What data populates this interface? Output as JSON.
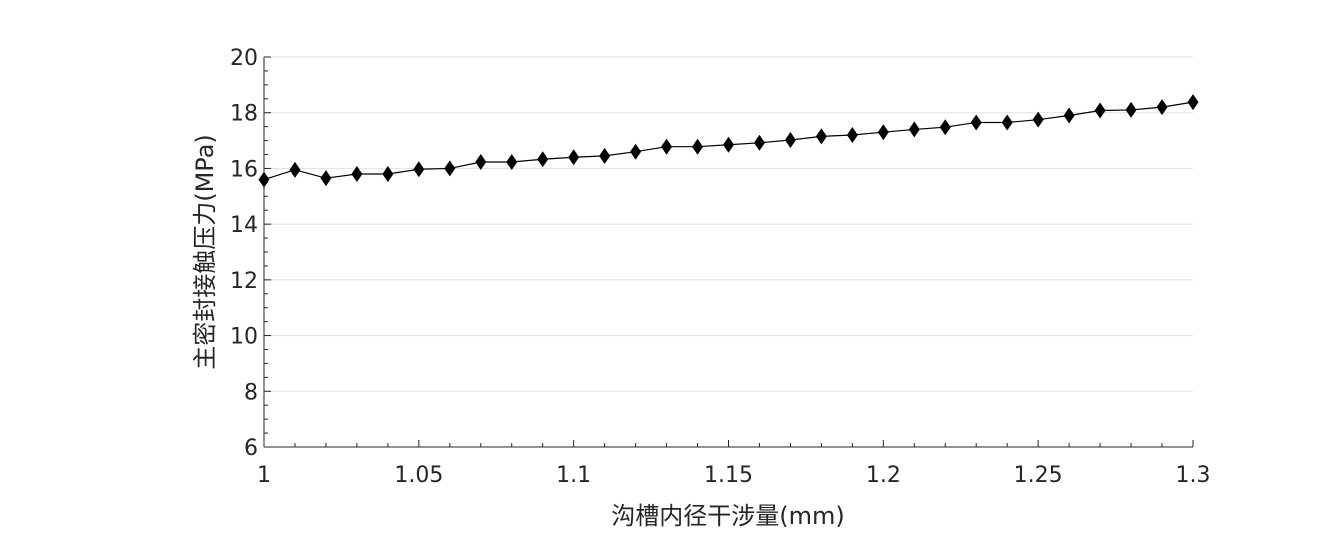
{
  "chart_data": {
    "type": "line",
    "title": "",
    "xlabel": "沟槽内径干涉量(mm)",
    "ylabel": "主密封接触压力(MPa)",
    "xlim": [
      1,
      1.3
    ],
    "ylim": [
      6,
      20
    ],
    "x_ticks": [
      "1",
      "1.05",
      "1.1",
      "1.15",
      "1.2",
      "1.25",
      "1.3"
    ],
    "y_ticks": [
      "6",
      "8",
      "10",
      "12",
      "14",
      "16",
      "18",
      "20"
    ],
    "grid": "horizontal major",
    "legend": "none",
    "marker": "diamond",
    "series": [
      {
        "name": "主密封接触压力",
        "color": "#000000",
        "x": [
          1.0,
          1.01,
          1.02,
          1.03,
          1.04,
          1.05,
          1.06,
          1.07,
          1.08,
          1.09,
          1.1,
          1.11,
          1.12,
          1.13,
          1.14,
          1.15,
          1.16,
          1.17,
          1.18,
          1.19,
          1.2,
          1.21,
          1.22,
          1.23,
          1.24,
          1.25,
          1.26,
          1.27,
          1.28,
          1.29,
          1.3
        ],
        "values": [
          15.6,
          15.95,
          15.65,
          15.8,
          15.8,
          15.97,
          16.0,
          16.23,
          16.23,
          16.33,
          16.4,
          16.45,
          16.6,
          16.78,
          16.78,
          16.85,
          16.92,
          17.02,
          17.15,
          17.2,
          17.3,
          17.4,
          17.48,
          17.65,
          17.65,
          17.75,
          17.9,
          18.08,
          18.1,
          18.2,
          18.38
        ]
      }
    ]
  },
  "colors": {
    "axis": "#262626",
    "grid": "#e0e0e0",
    "line": "#000000",
    "background": "#ffffff"
  }
}
